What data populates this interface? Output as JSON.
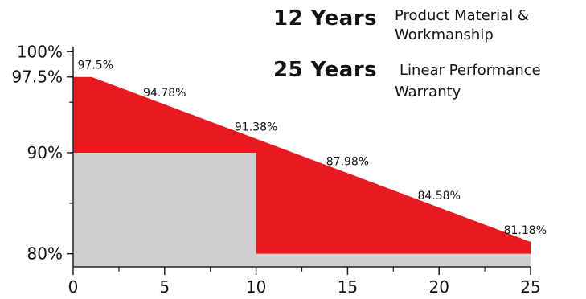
{
  "chart_data": {
    "type": "area",
    "x_ticks": [
      0,
      5,
      10,
      15,
      20,
      25
    ],
    "x_minor_ticks": [
      2.5,
      7.5,
      12.5,
      17.5,
      22.5
    ],
    "y_ticks": [
      {
        "value": 100,
        "label": "100%"
      },
      {
        "value": 97.5,
        "label": "97.5%"
      },
      {
        "value": 90,
        "label": "90%"
      },
      {
        "value": 80,
        "label": "80%"
      }
    ],
    "xlim": [
      0,
      25
    ],
    "ylim": [
      78.7,
      100.5
    ],
    "linear_warranty": {
      "x": [
        0,
        1,
        5,
        10,
        15,
        20,
        25
      ],
      "y": [
        97.5,
        97.5,
        94.78,
        91.38,
        87.98,
        84.58,
        81.18
      ]
    },
    "data_labels": [
      {
        "x": 1,
        "y": 97.5,
        "text": "97.5%"
      },
      {
        "x": 5,
        "y": 94.78,
        "text": "94.78%"
      },
      {
        "x": 10,
        "y": 91.38,
        "text": "91.38%"
      },
      {
        "x": 15,
        "y": 87.98,
        "text": "87.98%"
      },
      {
        "x": 20,
        "y": 84.58,
        "text": "84.58%"
      },
      {
        "x": 25,
        "y": 81.18,
        "text": "81.18%"
      }
    ],
    "step_guarantee": [
      {
        "x_start": 0,
        "x_end": 10,
        "y": 90
      },
      {
        "x_start": 10,
        "x_end": 25,
        "y": 80
      }
    ],
    "grid": false,
    "title": "",
    "xlabel": "",
    "ylabel": ""
  },
  "legend": [
    {
      "years": "12 Years",
      "desc": [
        "Product Material &",
        "Workmanship"
      ]
    },
    {
      "years": "25 Years",
      "desc": [
        "Linear Performance",
        "Warranty"
      ]
    }
  ],
  "colors": {
    "red": "#e8191f",
    "gray": "#cfcfcf",
    "axis": "#222222",
    "text": "#111111"
  }
}
